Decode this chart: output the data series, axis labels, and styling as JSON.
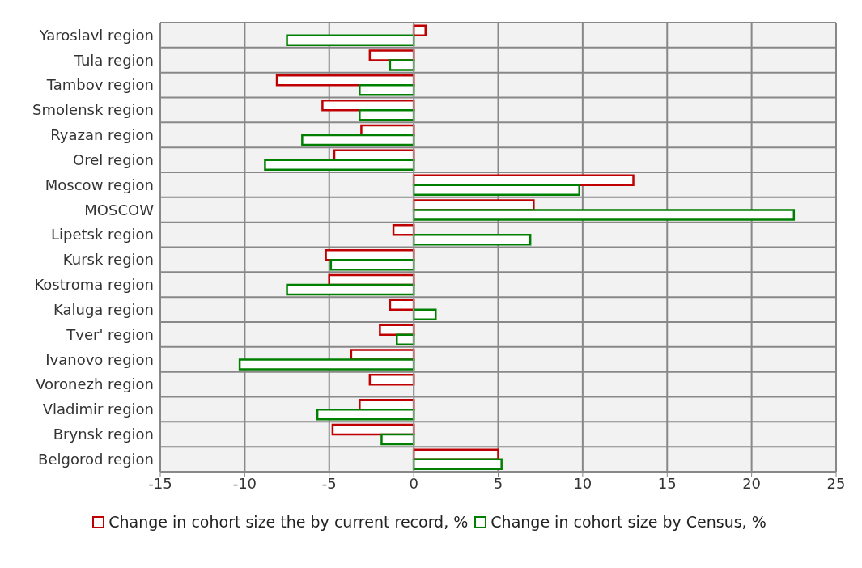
{
  "chart_data": {
    "type": "bar",
    "orientation": "horizontal",
    "categories": [
      "Yaroslavl region",
      "Tula region",
      "Tambov region",
      "Smolensk region",
      "Ryazan region",
      "Orel region",
      "Moscow region",
      "MOSCOW",
      "Lipetsk region",
      "Kursk region",
      "Kostroma region",
      "Kaluga region",
      "Tver' region",
      "Ivanovo region",
      "Voronezh region",
      "Vladimir region",
      "Brynsk region",
      "Belgorod region"
    ],
    "series": [
      {
        "name": "Change in cohort size the by current record, %",
        "color": "#c00000",
        "values": [
          0.7,
          -2.6,
          -8.1,
          -5.4,
          -3.1,
          -4.7,
          13.0,
          7.1,
          -1.2,
          -5.2,
          -5.0,
          -1.4,
          -2.0,
          -3.7,
          -2.6,
          -3.2,
          -4.8,
          5.0
        ]
      },
      {
        "name": "Change in cohort size by Census, %",
        "color": "#008000",
        "values": [
          -7.5,
          -1.4,
          -3.2,
          -3.2,
          -6.6,
          -8.8,
          9.8,
          22.5,
          6.9,
          -4.9,
          -7.5,
          1.3,
          -1.0,
          -10.3,
          null,
          -5.7,
          -1.9,
          5.2
        ]
      }
    ],
    "xlim": [
      -15,
      25
    ],
    "xticks": [
      -15,
      -10,
      -5,
      0,
      5,
      10,
      15,
      20,
      25
    ],
    "grid": true,
    "legend": "bottom"
  }
}
